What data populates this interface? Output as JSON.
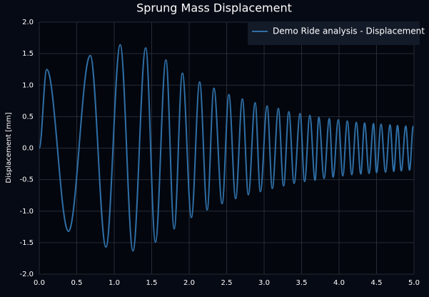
{
  "chart_data": {
    "type": "line",
    "title": "Sprung Mass Displacement",
    "y_label": "Displacement [mm]",
    "x": [
      0,
      0.1,
      0.39,
      0.68,
      0.89,
      1.08,
      1.25,
      1.42,
      1.55,
      1.69,
      1.8,
      1.91,
      2.03,
      2.14,
      2.24,
      2.33,
      2.44,
      2.53,
      2.62,
      2.71,
      2.79,
      2.88,
      2.95,
      3.04,
      3.11,
      3.19,
      3.26,
      3.33,
      3.4,
      3.48,
      3.54,
      3.61,
      3.68,
      3.73,
      3.8,
      3.87,
      3.92,
      3.99,
      4.05,
      4.11,
      4.17,
      4.23,
      4.29,
      4.34,
      4.4,
      4.46,
      4.5,
      4.56,
      4.62,
      4.68,
      4.73,
      4.78,
      4.83,
      4.89,
      4.94,
      4.99
    ],
    "series": [
      {
        "name": "Demo Ride analysis - Displacement",
        "color": "#2f6fa6",
        "values": [
          0,
          1.25,
          -1.32,
          1.47,
          -1.57,
          1.64,
          -1.63,
          1.59,
          -1.49,
          1.4,
          -1.28,
          1.19,
          -1.1,
          1.05,
          -0.98,
          0.95,
          -0.88,
          0.85,
          -0.8,
          0.78,
          -0.74,
          0.72,
          -0.69,
          0.67,
          -0.64,
          0.63,
          -0.6,
          0.58,
          -0.56,
          0.55,
          -0.53,
          0.52,
          -0.51,
          0.49,
          -0.48,
          0.47,
          -0.46,
          0.45,
          -0.44,
          0.43,
          -0.42,
          0.41,
          -0.41,
          0.4,
          -0.4,
          0.39,
          -0.39,
          0.38,
          -0.38,
          0.37,
          -0.37,
          0.36,
          -0.36,
          0.35,
          -0.35,
          0.35
        ]
      }
    ],
    "xlim": [
      0,
      5
    ],
    "ylim": [
      -2,
      2
    ],
    "xticks": [
      {
        "value": 0,
        "label": "0.0"
      },
      0.5,
      {
        "value": 1,
        "label": "1.0"
      },
      1.5,
      {
        "value": 2,
        "label": "2.0"
      },
      2.5,
      {
        "value": 3,
        "label": "3.0"
      },
      3.5,
      {
        "value": 4,
        "label": "4.0"
      },
      4.5,
      {
        "value": 5,
        "label": "5.0"
      }
    ],
    "yticks": [
      {
        "value": -2,
        "label": "-2.0"
      },
      -1.5,
      {
        "value": -1,
        "label": "-1.0"
      },
      -0.5,
      {
        "value": 0,
        "label": "0.0"
      },
      0.5,
      {
        "value": 1,
        "label": "1.0"
      },
      1.5,
      {
        "value": 2,
        "label": "2.0"
      }
    ],
    "grid": true,
    "legend": "top-right"
  }
}
